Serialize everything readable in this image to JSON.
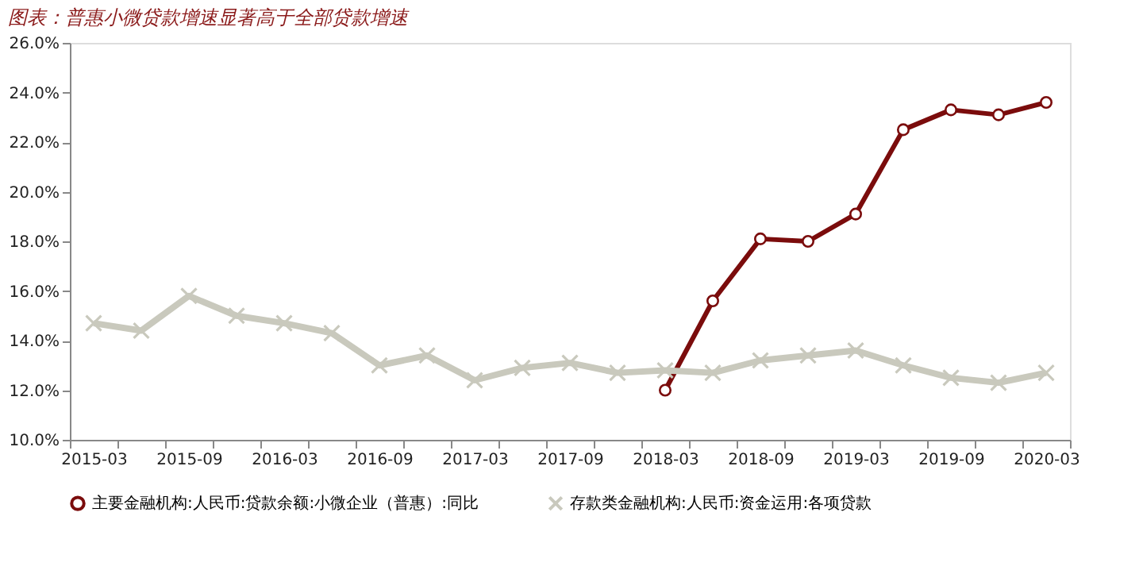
{
  "chart_data": {
    "type": "line",
    "title": "图表：普惠小微贷款增速显著高于全部贷款增速",
    "categories": [
      "2015-03",
      null,
      "2015-09",
      null,
      "2016-03",
      null,
      "2016-09",
      null,
      "2017-03",
      null,
      "2017-09",
      null,
      "2018-03",
      null,
      "2018-09",
      null,
      "2019-03",
      null,
      "2019-09",
      null,
      "2020-03"
    ],
    "series": [
      {
        "name": "主要金融机构:人民币:贷款余额:小微企业（普惠）:同比",
        "color": "#7b0c0c",
        "marker": "circle",
        "values": [
          null,
          null,
          null,
          null,
          null,
          null,
          null,
          null,
          null,
          null,
          null,
          null,
          12.0,
          15.6,
          18.1,
          18.0,
          19.1,
          22.5,
          23.3,
          23.1,
          23.6
        ]
      },
      {
        "name": "存款类金融机构:人民币:资金运用:各项贷款",
        "color": "#c9c9bd",
        "marker": "cross",
        "values": [
          14.7,
          14.4,
          15.8,
          15.0,
          14.7,
          14.3,
          13.0,
          13.4,
          12.4,
          12.9,
          13.1,
          12.7,
          12.8,
          12.7,
          13.2,
          13.4,
          13.6,
          13.0,
          12.5,
          12.3,
          12.7
        ]
      }
    ],
    "ylim": [
      10,
      26
    ],
    "yticks": [
      {
        "value": 10,
        "label": "10.0%"
      },
      {
        "value": 12,
        "label": "12.0%"
      },
      {
        "value": 14,
        "label": "14.0%"
      },
      {
        "value": 16,
        "label": "16.0%"
      },
      {
        "value": 18,
        "label": "18.0%"
      },
      {
        "value": 20,
        "label": "20.0%"
      },
      {
        "value": 22,
        "label": "22.0%"
      },
      {
        "value": 24,
        "label": "24.0%"
      },
      {
        "value": 26,
        "label": "26.0%"
      }
    ],
    "grid": false,
    "legend": "bottom",
    "line_style": "solid"
  }
}
